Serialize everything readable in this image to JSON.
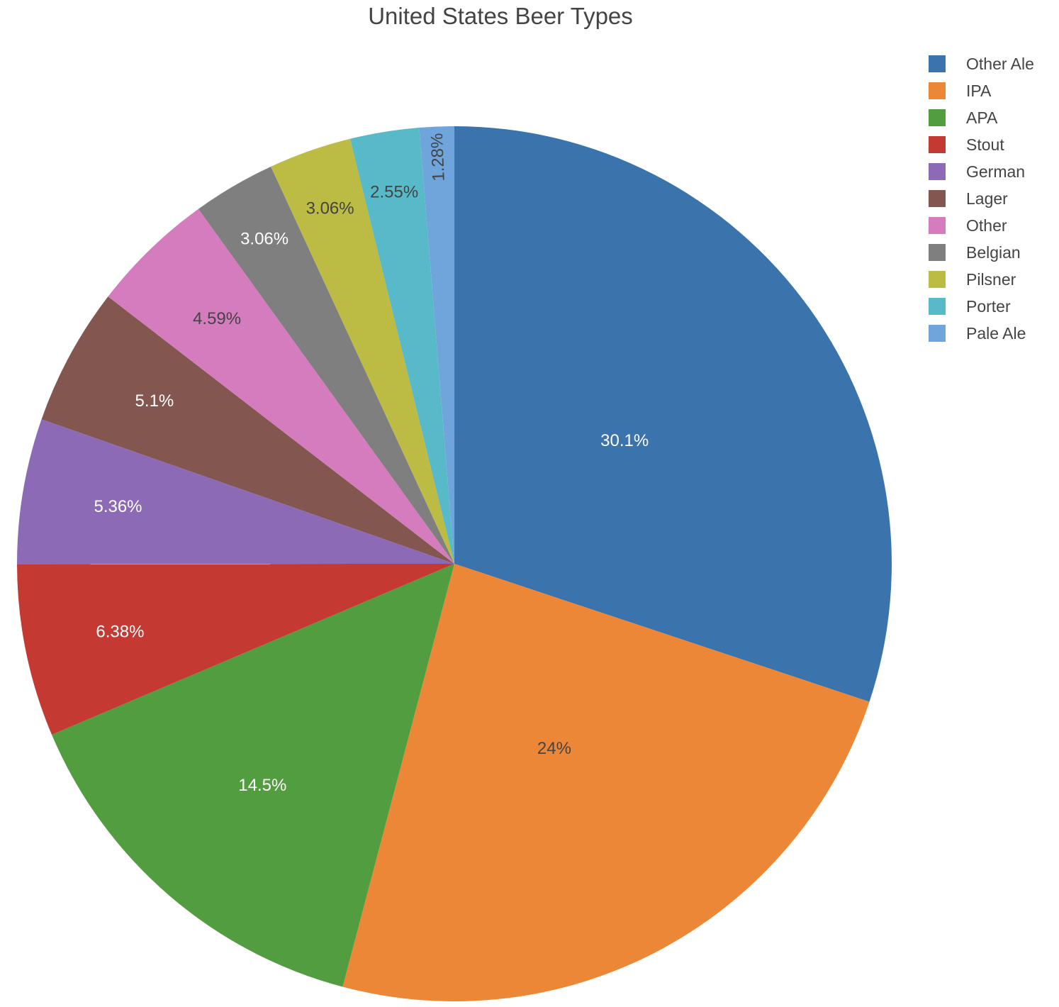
{
  "chart_data": {
    "type": "pie",
    "title": "United States Beer Types",
    "categories": [
      "Other Ale",
      "IPA",
      "APA",
      "Stout",
      "German",
      "Lager",
      "Other",
      "Belgian",
      "Pilsner",
      "Porter",
      "Pale Ale"
    ],
    "values": [
      30.1,
      24.0,
      14.5,
      6.38,
      5.36,
      5.1,
      4.59,
      3.06,
      3.06,
      2.55,
      1.28
    ],
    "labels": [
      "30.1%",
      "24%",
      "14.5%",
      "6.38%",
      "5.36%",
      "5.1%",
      "4.59%",
      "3.06%",
      "3.06%",
      "2.55%",
      "1.28%"
    ],
    "colors": [
      "#3b73ad",
      "#ed8738",
      "#529d3f",
      "#c43a33",
      "#8d6ab5",
      "#83574f",
      "#d57cbf",
      "#7f7f7f",
      "#bcbb44",
      "#58b9c9",
      "#6fa5db"
    ],
    "label_colors": [
      "#ffffff",
      "#444444",
      "#ffffff",
      "#ffffff",
      "#ffffff",
      "#ffffff",
      "#444444",
      "#ffffff",
      "#444444",
      "#444444",
      "#444444"
    ],
    "direction": "clockwise",
    "start_angle": "top",
    "legend_position": "top-right"
  }
}
